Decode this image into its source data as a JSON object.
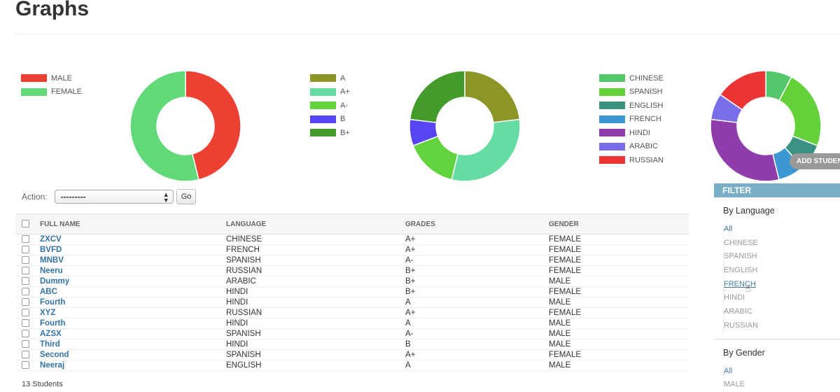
{
  "page": {
    "title": "Graphs"
  },
  "chart_data": [
    {
      "type": "pie",
      "donut": true,
      "categories": [
        "MALE",
        "FEMALE"
      ],
      "values": [
        6,
        7
      ],
      "colors": [
        "#ec4132",
        "#62d979"
      ],
      "legend_placement": "left"
    },
    {
      "type": "pie",
      "donut": true,
      "categories": [
        "A",
        "A+",
        "A-",
        "B",
        "B+"
      ],
      "values": [
        3,
        4,
        2,
        1,
        3
      ],
      "colors": [
        "#8c9626",
        "#64dca2",
        "#63d43d",
        "#5844f0",
        "#439b2a"
      ],
      "legend_placement": "left"
    },
    {
      "type": "pie",
      "donut": true,
      "categories": [
        "CHINESE",
        "SPANISH",
        "ENGLISH",
        "FRENCH",
        "HINDI",
        "ARABIC",
        "RUSSIAN"
      ],
      "values": [
        1,
        3,
        1,
        1,
        4,
        1,
        2
      ],
      "colors": [
        "#54c76a",
        "#63d13a",
        "#3a9283",
        "#3c98d2",
        "#8e3dab",
        "#7a6de9",
        "#ec3435"
      ],
      "legend_placement": "left"
    }
  ],
  "actions": {
    "label": "Action:",
    "selected": "---------",
    "go_label": "Go"
  },
  "table": {
    "headers": {
      "name": "FULL NAME",
      "language": "LANGUAGE",
      "grades": "GRADES",
      "gender": "GENDER"
    },
    "rows": [
      {
        "name": "ZXCV",
        "language": "CHINESE",
        "grade": "A+",
        "gender": "FEMALE"
      },
      {
        "name": "BVFD",
        "language": "FRENCH",
        "grade": "A+",
        "gender": "FEMALE"
      },
      {
        "name": "MNBV",
        "language": "SPANISH",
        "grade": "A-",
        "gender": "FEMALE"
      },
      {
        "name": "Neeru",
        "language": "RUSSIAN",
        "grade": "B+",
        "gender": "FEMALE"
      },
      {
        "name": "Dummy",
        "language": "ARABIC",
        "grade": "B+",
        "gender": "MALE"
      },
      {
        "name": "ABC",
        "language": "HINDI",
        "grade": "B+",
        "gender": "FEMALE"
      },
      {
        "name": "Fourth",
        "language": "HINDI",
        "grade": "A",
        "gender": "MALE"
      },
      {
        "name": "XYZ",
        "language": "RUSSIAN",
        "grade": "A+",
        "gender": "FEMALE"
      },
      {
        "name": "Fourth",
        "language": "HINDI",
        "grade": "A",
        "gender": "MALE"
      },
      {
        "name": "AZSX",
        "language": "SPANISH",
        "grade": "A-",
        "gender": "MALE"
      },
      {
        "name": "Third",
        "language": "HINDI",
        "grade": "B",
        "gender": "MALE"
      },
      {
        "name": "Second",
        "language": "SPANISH",
        "grade": "A+",
        "gender": "FEMALE"
      },
      {
        "name": "Neeraj",
        "language": "ENGLISH",
        "grade": "A",
        "gender": "MALE"
      }
    ],
    "count_label": "13 Students"
  },
  "add_button": {
    "label": "ADD STUDENT"
  },
  "filter": {
    "title": "FILTER",
    "by_language": {
      "heading": "By Language",
      "options": [
        "All",
        "CHINESE",
        "SPANISH",
        "ENGLISH",
        "FRENCH",
        "HINDI",
        "ARABIC",
        "RUSSIAN"
      ],
      "selected": "All",
      "hovered": "FRENCH"
    },
    "by_gender": {
      "heading": "By Gender",
      "options": [
        "All",
        "MALE"
      ],
      "selected": "All"
    }
  }
}
